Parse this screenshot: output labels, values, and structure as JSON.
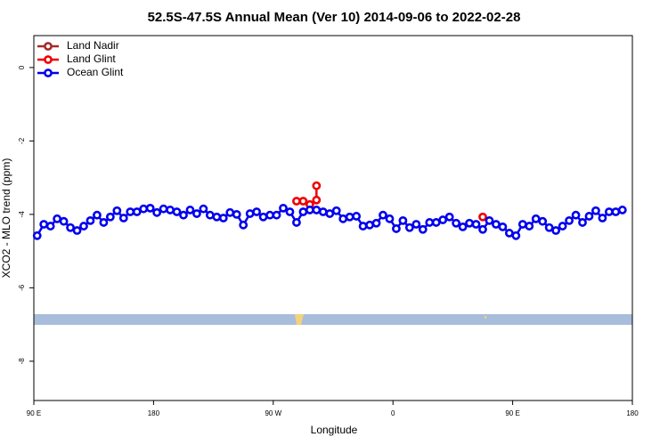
{
  "chart_data": {
    "type": "line",
    "title": "52.5S-47.5S Annual Mean (Ver 10)   2014-09-06 to 2022-02-28",
    "xlabel": "Longitude",
    "ylabel": "XCO2 - MLO trend (ppm)",
    "xlim": [
      90,
      540
    ],
    "xticks": [
      {
        "value": 90,
        "label": "90 E"
      },
      {
        "value": 180,
        "label": "180"
      },
      {
        "value": 270,
        "label": "90 W"
      },
      {
        "value": 360,
        "label": "0"
      },
      {
        "value": 450,
        "label": "90 E"
      },
      {
        "value": 540,
        "label": "180"
      }
    ],
    "ylim": [
      -9.07,
      0.87
    ],
    "yticks": [
      0,
      -2,
      -4,
      -6,
      -8
    ],
    "legend": "upper-left",
    "series": [
      {
        "name": "Land Nadir",
        "color": "#a52a2a",
        "x": [],
        "values": []
      },
      {
        "name": "Land Glint",
        "color": "#ee0000",
        "x": [
          287.5,
          292.5,
          297.5,
          302.5,
          302.5,
          null,
          427.5
        ],
        "values": [
          -3.64,
          -3.64,
          -3.73,
          -3.61,
          -3.22,
          null,
          -4.07
        ]
      },
      {
        "name": "Ocean Glint",
        "color": "#0000ee",
        "x": [
          92.5,
          97.5,
          102.5,
          107.5,
          112.5,
          117.5,
          122.5,
          127.5,
          132.5,
          137.5,
          142.5,
          147.5,
          152.5,
          157.5,
          162.5,
          167.5,
          172.5,
          177.5,
          182.5,
          187.5,
          192.5,
          197.5,
          202.5,
          207.5,
          212.5,
          217.5,
          222.5,
          227.5,
          232.5,
          237.5,
          242.5,
          247.5,
          252.5,
          257.5,
          262.5,
          267.5,
          272.5,
          277.5,
          282.5,
          287.5,
          292.5,
          297.5,
          302.5,
          307.5,
          312.5,
          317.5,
          322.5,
          327.5,
          332.5,
          337.5,
          342.5,
          347.5,
          352.5,
          357.5,
          362.5,
          367.5,
          372.5,
          377.5,
          382.5,
          387.5,
          392.5,
          397.5,
          402.5,
          407.5,
          412.5,
          417.5,
          422.5,
          427.5,
          432.5,
          437.5,
          442.5,
          447.5,
          452.5,
          457.5,
          462.5,
          467.5,
          472.5,
          477.5,
          482.5,
          487.5,
          492.5,
          497.5,
          502.5,
          507.5,
          512.5,
          517.5,
          522.5,
          527.5,
          532.5
        ],
        "values": [
          -4.58,
          -4.27,
          -4.32,
          -4.12,
          -4.19,
          -4.36,
          -4.44,
          -4.32,
          -4.17,
          -4.02,
          -4.22,
          -4.07,
          -3.9,
          -4.1,
          -3.93,
          -3.93,
          -3.85,
          -3.83,
          -3.95,
          -3.85,
          -3.88,
          -3.93,
          -4.02,
          -3.88,
          -3.98,
          -3.85,
          -4.02,
          -4.07,
          -4.1,
          -3.95,
          -4.0,
          -4.29,
          -3.98,
          -3.93,
          -4.07,
          -4.02,
          -4.02,
          -3.83,
          -3.93,
          -4.22,
          -3.93,
          -3.88,
          -3.88,
          -3.93,
          -3.98,
          -3.9,
          -4.12,
          -4.07,
          -4.05,
          -4.32,
          -4.29,
          -4.24,
          -4.02,
          -4.12,
          -4.39,
          -4.17,
          -4.36,
          -4.27,
          -4.41,
          -4.22,
          -4.22,
          -4.15,
          -4.07,
          -4.24,
          -4.34,
          -4.24,
          -4.27,
          -4.41,
          -4.17,
          -4.27,
          -4.34,
          -4.51,
          -4.58,
          -4.27,
          -4.32,
          -4.12,
          -4.19,
          -4.36,
          -4.44,
          -4.32,
          -4.17,
          -4.02,
          -4.22,
          -4.05,
          -3.9,
          -4.1,
          -3.93,
          -3.93,
          -3.88
        ]
      }
    ]
  }
}
